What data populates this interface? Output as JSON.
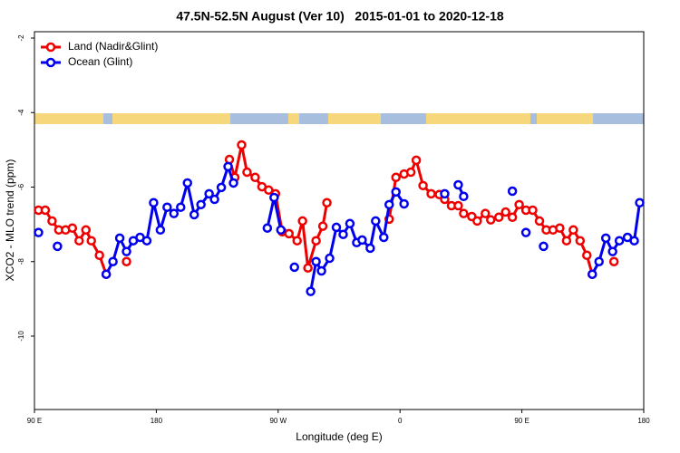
{
  "chart_data": {
    "type": "line",
    "title": "47.5N-52.5N August (Ver 10)   2015-01-01 to 2020-12-18",
    "x_label": "Longitude (deg E)",
    "y_label": "XCO2 - MLO trend (ppm)",
    "xlim": [
      90,
      540
    ],
    "ylim": [
      -11.97,
      -1.83
    ],
    "xticks": [
      {
        "value": 90,
        "label": "90 E"
      },
      {
        "value": 180,
        "label": "180"
      },
      {
        "value": 270,
        "label": "90 W"
      },
      {
        "value": 360,
        "label": "0"
      },
      {
        "value": 450,
        "label": "90 E"
      },
      {
        "value": 540,
        "label": "180"
      }
    ],
    "yticks": [
      -2,
      -4,
      -6,
      -8,
      -10
    ],
    "legend": "top-left",
    "series": [
      {
        "name": "Land (Nadir&Glint)",
        "color": "#ee0000",
        "x": [
          93,
          98,
          103,
          108,
          113,
          118,
          123,
          128,
          132,
          138,
          143,
          null,
          158,
          null,
          234,
          238,
          243,
          247,
          253,
          258,
          263,
          268,
          273,
          278,
          284,
          288,
          292,
          298,
          303,
          306,
          null,
          352,
          357,
          363,
          368,
          372,
          377,
          383,
          389,
          393,
          398,
          403,
          407,
          413,
          417,
          423,
          427,
          433,
          438,
          443,
          448,
          453,
          458,
          463,
          468,
          473,
          478,
          483,
          488,
          493,
          498,
          502,
          null,
          518
        ],
        "values": [
          -6.62,
          -6.62,
          -6.91,
          -7.15,
          -7.15,
          -7.1,
          -7.44,
          -7.15,
          -7.44,
          -7.83,
          -8.34,
          null,
          -8.0,
          null,
          -5.26,
          -5.74,
          -4.87,
          -5.6,
          -5.74,
          -5.99,
          -6.08,
          -6.18,
          -7.2,
          -7.25,
          -7.44,
          -6.91,
          -8.17,
          -7.44,
          -7.05,
          -6.42,
          null,
          -6.86,
          -5.74,
          -5.65,
          -5.6,
          -5.28,
          -5.96,
          -6.18,
          -6.2,
          -6.33,
          -6.5,
          -6.5,
          -6.71,
          -6.79,
          -6.91,
          -6.71,
          -6.88,
          -6.81,
          -6.67,
          -6.81,
          -6.47,
          -6.62,
          -6.62,
          -6.91,
          -7.15,
          -7.15,
          -7.1,
          -7.44,
          -7.15,
          -7.44,
          -7.83,
          -8.34,
          null,
          -8.0
        ]
      },
      {
        "name": "Ocean (Glint)",
        "color": "#0000ee",
        "x": [
          93,
          null,
          107,
          null,
          143,
          148,
          153,
          158,
          163,
          168,
          173,
          178,
          183,
          188,
          193,
          198,
          203,
          208,
          213,
          219,
          223,
          228,
          233,
          237,
          null,
          262,
          267,
          272,
          null,
          282,
          null,
          294,
          298,
          302,
          308,
          313,
          318,
          323,
          328,
          332,
          338,
          342,
          348,
          352,
          357,
          363,
          null,
          393,
          null,
          403,
          407,
          null,
          443,
          null,
          453,
          null,
          466,
          null,
          502,
          507,
          512,
          517,
          522,
          528,
          533,
          537
        ],
        "values": [
          -7.22,
          null,
          -7.59,
          null,
          -8.34,
          -8.0,
          -7.37,
          -7.73,
          -7.44,
          -7.35,
          -7.44,
          -6.42,
          -7.15,
          -6.54,
          -6.71,
          -6.54,
          -5.89,
          -6.74,
          -6.47,
          -6.18,
          -6.33,
          -6.01,
          -5.45,
          -5.89,
          null,
          -7.1,
          -6.28,
          -7.15,
          null,
          -8.15,
          null,
          -8.8,
          -8.0,
          -8.25,
          -7.91,
          -7.08,
          -7.27,
          -6.98,
          -7.49,
          -7.42,
          -7.64,
          -6.91,
          -7.35,
          -6.47,
          -6.13,
          -6.45,
          null,
          -6.18,
          null,
          -5.94,
          -6.25,
          null,
          -6.11,
          null,
          -7.22,
          null,
          -7.59,
          null,
          -8.34,
          -8.0,
          -7.37,
          -7.73,
          -7.44,
          -7.35,
          -7.44,
          -6.42
        ]
      }
    ]
  }
}
